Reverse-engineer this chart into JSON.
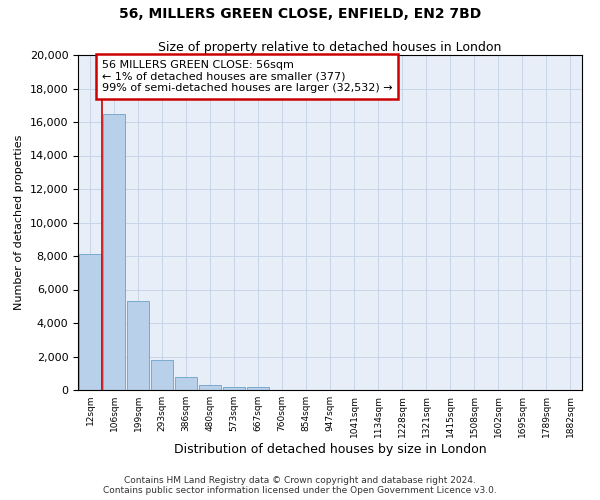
{
  "title_line1": "56, MILLERS GREEN CLOSE, ENFIELD, EN2 7BD",
  "title_line2": "Size of property relative to detached houses in London",
  "xlabel": "Distribution of detached houses by size in London",
  "ylabel": "Number of detached properties",
  "categories": [
    "12sqm",
    "106sqm",
    "199sqm",
    "293sqm",
    "386sqm",
    "480sqm",
    "573sqm",
    "667sqm",
    "760sqm",
    "854sqm",
    "947sqm",
    "1041sqm",
    "1134sqm",
    "1228sqm",
    "1321sqm",
    "1415sqm",
    "1508sqm",
    "1602sqm",
    "1695sqm",
    "1789sqm",
    "1882sqm"
  ],
  "bar_heights": [
    8100,
    16500,
    5300,
    1800,
    750,
    300,
    200,
    200,
    0,
    0,
    0,
    0,
    0,
    0,
    0,
    0,
    0,
    0,
    0,
    0,
    0
  ],
  "bar_color": "#b8d0ea",
  "bar_edge_color": "#7aaad0",
  "annotation_box_color": "#ffffff",
  "annotation_border_color": "#cc0000",
  "annotation_line1": "56 MILLERS GREEN CLOSE: 56sqm",
  "annotation_line2": "← 1% of detached houses are smaller (377)",
  "annotation_line3": "99% of semi-detached houses are larger (32,532) →",
  "ylim": [
    0,
    20000
  ],
  "yticks": [
    0,
    2000,
    4000,
    6000,
    8000,
    10000,
    12000,
    14000,
    16000,
    18000,
    20000
  ],
  "grid_color": "#c8d4e8",
  "background_color": "#e8eef8",
  "footer_line1": "Contains HM Land Registry data © Crown copyright and database right 2024.",
  "footer_line2": "Contains public sector information licensed under the Open Government Licence v3.0."
}
